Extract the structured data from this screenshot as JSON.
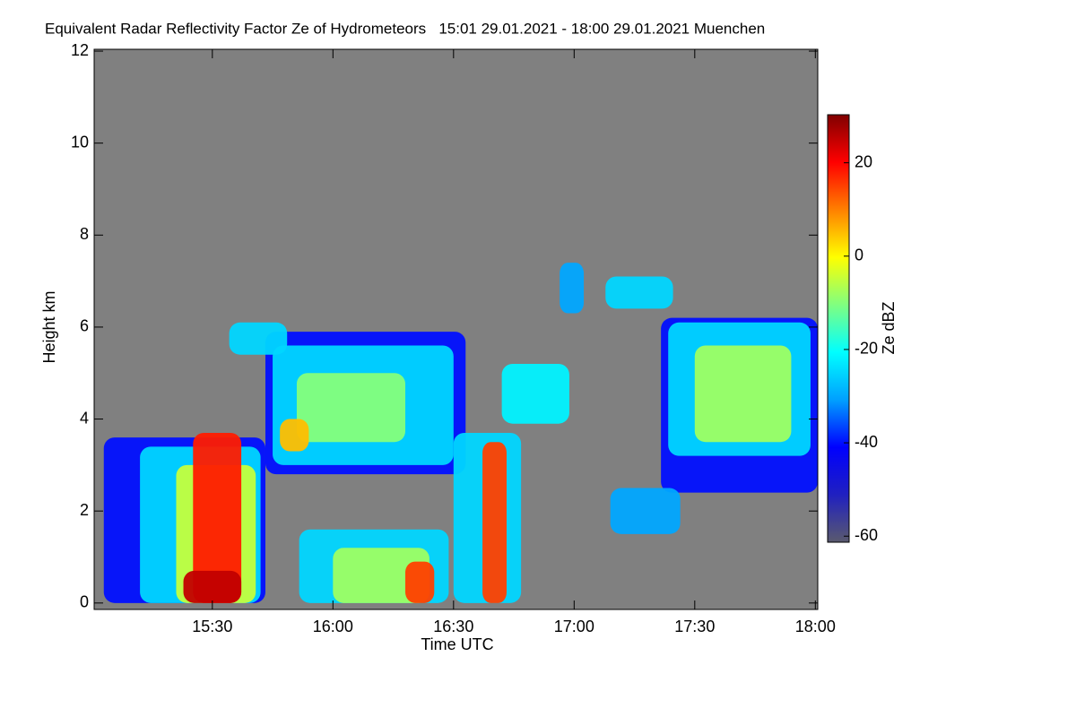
{
  "chart_data": {
    "type": "heatmap",
    "title": "Equivalent Radar Reflectivity Factor Ze of Hydrometeors   15:01 29.01.2021 - 18:00 29.01.2021 Muenchen",
    "x_label": "Time UTC",
    "y_label": "Height km",
    "colorbar_label": "Ze dBZ",
    "background": "#808080",
    "xlim": [
      15.01,
      18.01
    ],
    "xticks": [
      {
        "value": 15.5,
        "label": "15:30"
      },
      {
        "value": 16,
        "label": "16:00"
      },
      {
        "value": 16.5,
        "label": "16:30"
      },
      {
        "value": 17,
        "label": "17:00"
      },
      {
        "value": 17.5,
        "label": "17:30"
      },
      {
        "value": 18,
        "label": "18:00"
      }
    ],
    "ylim": [
      -0.14,
      12.04
    ],
    "yticks": [
      0,
      2,
      4,
      6,
      8,
      10,
      12
    ],
    "clim": [
      -61.3,
      30.3
    ],
    "cticks": [
      20,
      0,
      -20,
      -40,
      -60
    ],
    "colormap": [
      "#5a5a6e",
      "#2020c0",
      "#0000ff",
      "#00a0ff",
      "#00ffff",
      "#80ff80",
      "#ffff00",
      "#ff8000",
      "#ff0000",
      "#800000"
    ],
    "cells": [
      {
        "t0": 15.05,
        "t1": 15.72,
        "h0": 0,
        "h1": 3.6,
        "value": -40
      },
      {
        "t0": 15.72,
        "t1": 16.55,
        "h0": 2.8,
        "h1": 5.9,
        "value": -40
      },
      {
        "t0": 17.36,
        "t1": 18.01,
        "h0": 2.4,
        "h1": 6.2,
        "value": -40
      },
      {
        "t0": 15.2,
        "t1": 15.7,
        "h0": 0,
        "h1": 3.4,
        "value": -25
      },
      {
        "t0": 15.75,
        "t1": 16.5,
        "h0": 3.0,
        "h1": 5.6,
        "value": -25
      },
      {
        "t0": 15.57,
        "t1": 15.81,
        "h0": 5.4,
        "h1": 6.1,
        "value": -25
      },
      {
        "t0": 15.86,
        "t1": 16.48,
        "h0": 0,
        "h1": 1.6,
        "value": -25
      },
      {
        "t0": 16.5,
        "t1": 16.78,
        "h0": 0,
        "h1": 3.7,
        "value": -25
      },
      {
        "t0": 16.7,
        "t1": 16.98,
        "h0": 3.9,
        "h1": 5.2,
        "value": -22
      },
      {
        "t0": 16.94,
        "t1": 17.04,
        "h0": 6.3,
        "h1": 7.4,
        "value": -30
      },
      {
        "t0": 17.13,
        "t1": 17.41,
        "h0": 6.4,
        "h1": 7.1,
        "value": -25
      },
      {
        "t0": 17.15,
        "t1": 17.44,
        "h0": 1.5,
        "h1": 2.5,
        "value": -30
      },
      {
        "t0": 17.39,
        "t1": 17.98,
        "h0": 3.2,
        "h1": 6.1,
        "value": -25
      },
      {
        "t0": 15.35,
        "t1": 15.68,
        "h0": 0,
        "h1": 3.0,
        "value": -5
      },
      {
        "t0": 15.85,
        "t1": 16.3,
        "h0": 3.5,
        "h1": 5.0,
        "value": -10
      },
      {
        "t0": 16.0,
        "t1": 16.4,
        "h0": 0,
        "h1": 1.2,
        "value": -8
      },
      {
        "t0": 17.5,
        "t1": 17.9,
        "h0": 3.5,
        "h1": 5.6,
        "value": -8
      },
      {
        "t0": 15.78,
        "t1": 15.9,
        "h0": 3.3,
        "h1": 4.0,
        "value": 5
      },
      {
        "t0": 15.42,
        "t1": 15.62,
        "h0": 0,
        "h1": 3.7,
        "value": 18
      },
      {
        "t0": 16.3,
        "t1": 16.42,
        "h0": 0,
        "h1": 0.9,
        "value": 15
      },
      {
        "t0": 16.62,
        "t1": 16.72,
        "h0": 0,
        "h1": 3.5,
        "value": 15
      },
      {
        "t0": 15.38,
        "t1": 15.62,
        "h0": 0,
        "h1": 0.7,
        "value": 25
      }
    ]
  }
}
